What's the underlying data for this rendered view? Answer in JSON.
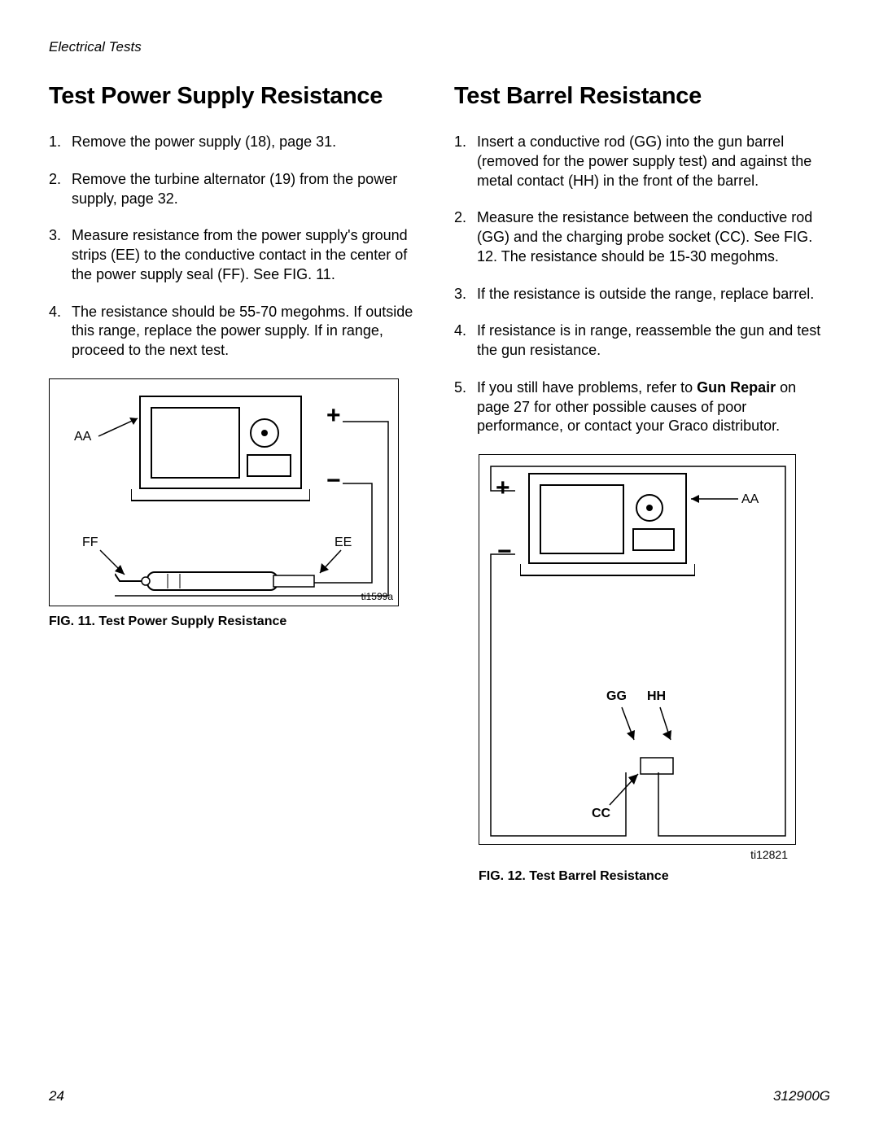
{
  "header": {
    "section": "Electrical Tests"
  },
  "left": {
    "heading": "Test Power Supply Resistance",
    "steps": [
      "Remove the power supply (18), page 31.",
      "Remove the turbine alternator (19) from the power supply, page 32.",
      "Measure resistance from the power supply's ground strips (EE) to the conductive contact in the center of the power supply seal (FF). See F<span class=\"smallcaps\">IG</span>. 11.",
      "The resistance should be 55-70 megohms. If outside this range, replace the power supply. If in range, proceed to the next test."
    ],
    "figure": {
      "caption": "F<span class=\"smallcaps\">IG</span>. 11. Test Power Supply Resistance",
      "code": "ti1599a",
      "labels": {
        "AA": "AA",
        "FF": "FF",
        "EE": "EE"
      }
    }
  },
  "right": {
    "heading": "Test Barrel Resistance",
    "steps": [
      "Insert a conductive rod (GG) into the gun barrel (removed for the power supply test) and against the metal contact (HH) in the front of the barrel.",
      "Measure the resistance between the conductive rod (GG) and the charging probe socket (CC). See F<span class=\"smallcaps\">IG</span>. 12. The resistance should be 15-30 megohms.",
      "If the resistance is outside the range, replace barrel.",
      "If resistance is in range, reassemble the gun and test the gun resistance.",
      "If you still have problems, refer to <span class=\"bold\">Gun Repair</span> on page 27 for other possible causes of poor performance, or contact your Graco distributor."
    ],
    "figure": {
      "caption": "F<span class=\"smallcaps\">IG</span>. 12. Test Barrel Resistance",
      "code": "ti12821",
      "labels": {
        "AA": "AA",
        "GG": "GG",
        "HH": "HH",
        "CC": "CC"
      }
    }
  },
  "footer": {
    "page": "24",
    "doc": "312900G"
  }
}
